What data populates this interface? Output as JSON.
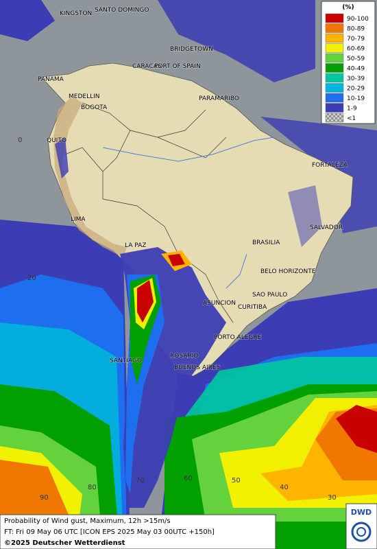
{
  "legend": {
    "title": "(%)",
    "items": [
      {
        "label": "90-100",
        "color": "#c80000"
      },
      {
        "label": "80-89",
        "color": "#f07800"
      },
      {
        "label": "70-79",
        "color": "#ffb400"
      },
      {
        "label": "60-69",
        "color": "#f0f000"
      },
      {
        "label": "50-59",
        "color": "#64d23c"
      },
      {
        "label": "40-49",
        "color": "#00a000"
      },
      {
        "label": "30-39",
        "color": "#00c8a0"
      },
      {
        "label": "20-29",
        "color": "#00b4dc"
      },
      {
        "label": "10-19",
        "color": "#1e6ef0"
      },
      {
        "label": "1-9",
        "color": "#3c3cb4"
      },
      {
        "label": "<1",
        "color": "#a0a0a0"
      }
    ]
  },
  "cities": [
    "KINGSTON",
    "SANTO DOMINGO",
    "BRIDGETOWN",
    "CARACAS",
    "PORT OF SPAIN",
    "PANAMA",
    "MEDELLIN",
    "BOGOTA",
    "PARAMARIBO",
    "QUITO",
    "FORTALEZA",
    "LIMA",
    "SALVADOR",
    "BRASILIA",
    "LA PAZ",
    "BELO HORIZONTE",
    "ASUNCION",
    "SAO PAULO",
    "CURITIBA",
    "PORTO ALEGRE",
    "ROSARIO",
    "BUENOS AIRES",
    "SANTIAGO"
  ],
  "lat_labels": [
    "0",
    "20"
  ],
  "lon_labels": [
    "90",
    "80",
    "70",
    "60",
    "50",
    "40",
    "30"
  ],
  "footer": {
    "line1": "Probability of Wind gust, Maximum, 12h >15m/s",
    "line2": "FT: Fri 09 May 06 UTC [ICON EPS 2025 May 03 00UTC +150h]",
    "line3": "©2025 Deutscher Wetterdienst",
    "logo": "DWD"
  }
}
